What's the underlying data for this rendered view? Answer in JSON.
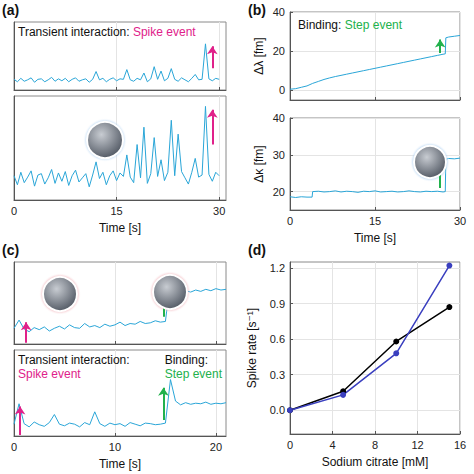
{
  "chart_data": [
    {
      "type": "line",
      "title": "(a)",
      "annotations": [
        {
          "text": "Transient interaction:",
          "event": "Spike event",
          "color": "#e0218a"
        }
      ],
      "x": [
        0,
        0.5,
        1,
        1.5,
        2,
        2.5,
        3,
        3.5,
        4,
        4.5,
        5,
        5.5,
        6,
        6.5,
        7,
        7.5,
        8,
        8.5,
        9,
        9.5,
        10,
        10.5,
        11,
        11.5,
        12,
        12.5,
        13,
        13.5,
        14,
        14.5,
        15,
        15.5,
        16,
        16.5,
        17,
        17.5,
        18,
        18.5,
        19,
        19.5,
        20,
        20.5,
        21,
        21.5,
        22,
        22.5,
        23,
        23.5,
        24,
        24.5,
        25,
        25.5,
        26,
        26.5,
        27,
        27.5,
        28,
        28.5,
        29,
        29.5,
        30
      ],
      "values": [
        0.2,
        -0.3,
        0.4,
        -0.2,
        0.1,
        0.5,
        -0.4,
        0.2,
        0.3,
        -0.3,
        0.1,
        0.6,
        -0.2,
        0.3,
        -0.1,
        0.4,
        -0.3,
        0.2,
        0.5,
        -0.2,
        0.1,
        0.3,
        -0.4,
        0.2,
        1.8,
        0.1,
        0.4,
        -0.3,
        0.2,
        0.5,
        -0.1,
        0.3,
        0.2,
        2.2,
        0.1,
        -0.2,
        0.4,
        0.1,
        1.5,
        -0.3,
        0.3,
        2.8,
        0.2,
        1.9,
        -0.1,
        0.4,
        2.4,
        0.2,
        -0.2,
        0.5,
        0.1,
        -0.3,
        0.4,
        1.2,
        0.1,
        0.2,
        7.5,
        0.3,
        -0.1,
        0.4,
        0.2
      ],
      "color": "#2aa6d8",
      "arrows": [
        {
          "x": 29,
          "from": 2.5,
          "to": 7,
          "color": "#e0218a"
        }
      ],
      "xlim": [
        0,
        31
      ],
      "xticks": [
        0,
        15,
        30
      ],
      "ylim": [
        -2,
        12
      ],
      "yticks": [],
      "grid": true,
      "tick_labels": false
    },
    {
      "type": "line",
      "xlabel": "Time [s]",
      "x": [
        0,
        0.5,
        1,
        1.5,
        2,
        2.5,
        3,
        3.5,
        4,
        4.5,
        5,
        5.5,
        6,
        6.5,
        7,
        7.5,
        8,
        8.5,
        9,
        9.5,
        10,
        10.5,
        11,
        11.5,
        12,
        12.5,
        13,
        13.5,
        14,
        14.5,
        15,
        15.5,
        16,
        16.5,
        17,
        17.5,
        18,
        18.5,
        19,
        19.5,
        20,
        20.5,
        21,
        21.5,
        22,
        22.5,
        23,
        23.5,
        24,
        24.5,
        25,
        25.5,
        26,
        26.5,
        27,
        27.5,
        28,
        28.5,
        29,
        29.5,
        30
      ],
      "values": [
        0.5,
        -0.8,
        1.0,
        -0.5,
        0.3,
        1.2,
        -1.0,
        0.6,
        0.8,
        -0.7,
        0.2,
        1.4,
        -0.6,
        0.9,
        -0.3,
        1.1,
        -0.9,
        0.5,
        1.3,
        -0.4,
        0.2,
        0.8,
        -1.1,
        0.6,
        2.5,
        0.1,
        1.0,
        -0.8,
        0.5,
        1.2,
        -0.2,
        0.9,
        0.4,
        3.5,
        0.3,
        -0.5,
        5.0,
        0.2,
        7.5,
        -0.6,
        0.8,
        6.0,
        0.4,
        2.8,
        -0.2,
        1.0,
        8.5,
        0.5,
        6.5,
        1.1,
        0.2,
        -0.7,
        1.0,
        3.0,
        0.3,
        0.6,
        10.5,
        0.7,
        -0.3,
        1.0,
        0.5
      ],
      "color": "#2aa6d8",
      "arrows": [
        {
          "x": 29,
          "from": 5,
          "to": 10,
          "color": "#e0218a"
        }
      ],
      "xlim": [
        0,
        31
      ],
      "xticks": [
        0,
        15,
        30
      ],
      "ylim": [
        -3,
        12
      ],
      "yticks": [],
      "grid": true,
      "tick_labels": "x"
    },
    {
      "type": "line",
      "title": "(b)",
      "ylabel": "Δλ [fm]",
      "annotations": [
        {
          "text": "Binding:",
          "event": "Step event",
          "color": "#22b14c"
        }
      ],
      "x": [
        0,
        1,
        2,
        3,
        4,
        5,
        6,
        7,
        8,
        9,
        10,
        11,
        12,
        13,
        14,
        15,
        16,
        17,
        18,
        19,
        20,
        21,
        22,
        23,
        24,
        25,
        26,
        27,
        27.4,
        27.5,
        28,
        29,
        30
      ],
      "values": [
        0.5,
        0.8,
        1.5,
        2.2,
        3.5,
        4.5,
        5.5,
        6.3,
        7.0,
        7.6,
        8.2,
        8.8,
        9.4,
        10.0,
        10.6,
        11.2,
        11.8,
        12.4,
        13.0,
        13.6,
        14.2,
        14.8,
        15.4,
        16.0,
        16.6,
        17.2,
        17.8,
        18.4,
        18.6,
        26.8,
        27.2,
        27.6,
        28.0
      ],
      "color": "#2aa6d8",
      "arrows": [
        {
          "x": 26.5,
          "from": 19,
          "to": 26,
          "color": "#22b14c"
        }
      ],
      "xlim": [
        0,
        30
      ],
      "xticks": [
        0,
        15,
        30
      ],
      "ylim": [
        -5,
        40
      ],
      "yticks": [
        0,
        20,
        40
      ],
      "grid": true,
      "tick_labels": "y"
    },
    {
      "type": "line",
      "xlabel": "Time [s]",
      "ylabel": "Δκ [fm]",
      "x": [
        0,
        1,
        2,
        3,
        3.9,
        4,
        5,
        6,
        7,
        8,
        9,
        10,
        11,
        12,
        13,
        14,
        15,
        16,
        17,
        18,
        19,
        20,
        21,
        22,
        23,
        24,
        25,
        26,
        27,
        27.4,
        27.5,
        28,
        29,
        30
      ],
      "values": [
        18.6,
        18.4,
        18.6,
        18.5,
        18.5,
        20.0,
        20.1,
        19.9,
        20.0,
        20.2,
        19.9,
        20.1,
        20.0,
        19.8,
        20.1,
        20.0,
        20.2,
        19.9,
        20.0,
        20.1,
        19.9,
        20.0,
        20.2,
        20.0,
        19.9,
        20.1,
        20.0,
        20.1,
        19.9,
        20.0,
        28.8,
        29.0,
        28.9,
        29.1
      ],
      "color": "#2aa6d8",
      "arrows": [
        {
          "x": 26.5,
          "from": 21,
          "to": 28,
          "color": "#22b14c"
        }
      ],
      "xlim": [
        0,
        30
      ],
      "xticks": [
        0,
        15,
        30
      ],
      "ylim": [
        15,
        40
      ],
      "yticks": [
        20,
        30,
        40
      ],
      "grid": true,
      "tick_labels": true
    },
    {
      "type": "line",
      "title": "(c)",
      "x": [
        0,
        0.5,
        1,
        1.5,
        2,
        2.5,
        3,
        3.5,
        4,
        4.5,
        5,
        5.5,
        6,
        6.5,
        7,
        7.5,
        8,
        8.5,
        9,
        9.5,
        10,
        10.5,
        11,
        11.5,
        12,
        12.5,
        13,
        13.5,
        14,
        14.5,
        15,
        15.5,
        16,
        16.5,
        17,
        17.5,
        18,
        18.5,
        19,
        19.5,
        20,
        20.5,
        21
      ],
      "values": [
        0.3,
        1.5,
        0.2,
        -0.2,
        0.4,
        0.1,
        0.5,
        -0.1,
        0.3,
        0.6,
        0.2,
        0.8,
        0.4,
        0.3,
        1.0,
        0.5,
        0.7,
        0.4,
        0.9,
        0.6,
        0.8,
        1.2,
        0.7,
        1.0,
        0.9,
        1.3,
        1.0,
        1.1,
        1.4,
        1.2,
        1.3,
        7.5,
        6.0,
        5.5,
        5.8,
        5.6,
        5.9,
        5.7,
        6.0,
        5.8,
        6.1,
        5.9,
        6.0
      ],
      "color": "#2aa6d8",
      "arrows": [
        {
          "x": 1.2,
          "from": -1.8,
          "to": 1.2,
          "color": "#e0218a"
        },
        {
          "x": 14.8,
          "from": 2,
          "to": 6.5,
          "color": "#22b14c"
        }
      ],
      "xlim": [
        0,
        21
      ],
      "xticks": [
        0,
        10,
        20
      ],
      "ylim": [
        -2,
        10
      ],
      "yticks": [],
      "grid": true,
      "tick_labels": false
    },
    {
      "type": "line",
      "xlabel": "Time [s]",
      "annotations": [
        {
          "text": "Transient interaction:",
          "event": "Spike event",
          "color": "#e0218a"
        },
        {
          "text": "Binding:",
          "event": "Step event",
          "color": "#22b14c"
        }
      ],
      "x": [
        0,
        0.5,
        1,
        1.5,
        2,
        2.5,
        3,
        3.5,
        4,
        4.5,
        5,
        5.5,
        6,
        6.5,
        7,
        7.5,
        8,
        8.5,
        9,
        9.5,
        10,
        10.5,
        11,
        11.5,
        12,
        12.5,
        13,
        13.5,
        14,
        14.5,
        15,
        15.5,
        16,
        16.5,
        17,
        17.5,
        18,
        18.5,
        19,
        19.5,
        20,
        20.5,
        21
      ],
      "values": [
        0.2,
        4.0,
        0.3,
        -0.3,
        0.6,
        0.1,
        -0.2,
        0.5,
        2.0,
        0.2,
        -0.1,
        0.4,
        0.2,
        -0.3,
        0.5,
        0.1,
        2.5,
        0.3,
        -0.2,
        0.4,
        0.1,
        0.3,
        -0.2,
        0.5,
        0.2,
        -0.1,
        0.4,
        0.3,
        0.1,
        0.2,
        0.4,
        8.5,
        4.5,
        3.8,
        4.2,
        3.9,
        4.1,
        4.0,
        4.3,
        3.9,
        4.1,
        4.0,
        4.2
      ],
      "color": "#2aa6d8",
      "arrows": [
        {
          "x": 0.6,
          "from": -1.8,
          "to": 3.5,
          "color": "#e0218a"
        },
        {
          "x": 14.8,
          "from": 1,
          "to": 7,
          "color": "#22b14c"
        }
      ],
      "xlim": [
        0,
        21
      ],
      "xticks": [
        0,
        10,
        20
      ],
      "ylim": [
        -2,
        14
      ],
      "yticks": [],
      "grid": true,
      "tick_labels": "x"
    },
    {
      "type": "line",
      "title": "(d)",
      "xlabel": "Sodium citrate [mM]",
      "ylabel": "Spike rate [s⁻¹]",
      "x": [
        0,
        5,
        10,
        15
      ],
      "series": [
        {
          "color": "#000000",
          "marker": "circle",
          "values": [
            0,
            0.16,
            0.58,
            0.87
          ]
        },
        {
          "color": "#3a3fbf",
          "marker": "circle",
          "values": [
            0,
            0.13,
            0.48,
            1.22
          ]
        }
      ],
      "xlim": [
        0,
        16
      ],
      "xticks": [
        0,
        4,
        8,
        12,
        16
      ],
      "ylim": [
        -0.2,
        1.25
      ],
      "yticks": [
        {
          "value": 0,
          "label": "0.0"
        },
        0.3,
        0.6,
        0.9,
        1.2
      ],
      "grid": true,
      "tick_labels": true
    }
  ]
}
